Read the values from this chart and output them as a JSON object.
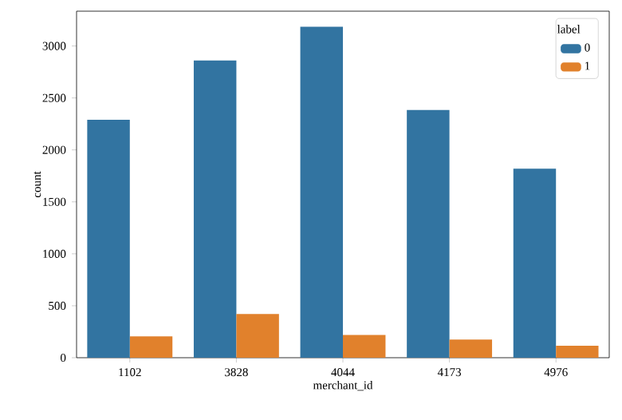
{
  "chart_data": {
    "type": "bar",
    "xlabel": "merchant_id",
    "ylabel": "count",
    "legend_title": "label",
    "categories": [
      "1102",
      "3828",
      "4044",
      "4173",
      "4976"
    ],
    "series": [
      {
        "name": "0",
        "color": "#3274a1",
        "values": [
          2290,
          2860,
          3185,
          2385,
          1820
        ]
      },
      {
        "name": "1",
        "color": "#e1812c",
        "values": [
          205,
          420,
          220,
          175,
          115
        ]
      }
    ],
    "ylim": [
      0,
      3335
    ],
    "yticks": [
      0,
      500,
      1000,
      1500,
      2000,
      2500,
      3000
    ],
    "legend": "top right"
  }
}
